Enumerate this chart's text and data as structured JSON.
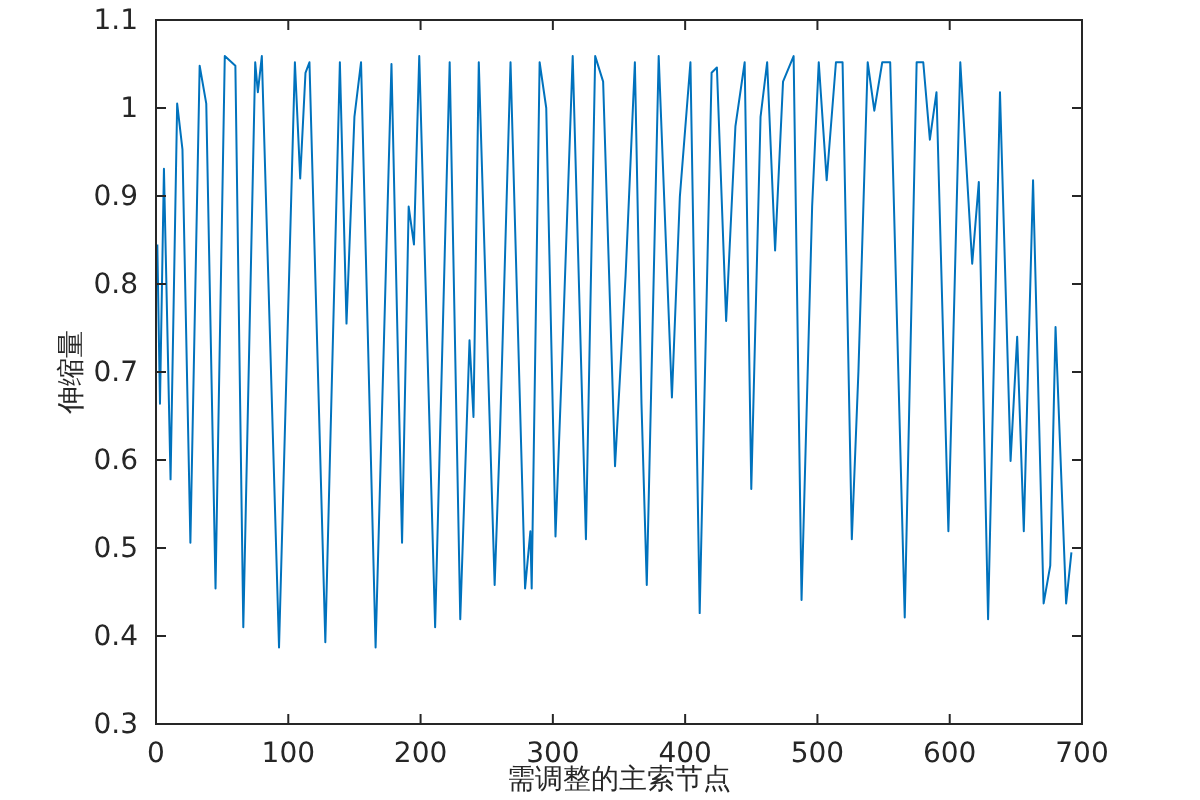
{
  "chart_data": {
    "type": "line",
    "xlabel": "需调整的主索节点",
    "ylabel": "伸缩量",
    "xlim": [
      0,
      700
    ],
    "ylim": [
      0.3,
      1.1
    ],
    "xticks": [
      0,
      100,
      200,
      300,
      400,
      500,
      600,
      700
    ],
    "yticks": [
      0.3,
      0.4,
      0.5,
      0.6,
      0.7,
      0.8,
      0.9,
      1,
      1.1
    ],
    "marker": "none",
    "line_style": "solid",
    "series": [
      {
        "color": "#0072bd",
        "x": [
          1,
          3,
          6,
          11,
          16,
          20,
          26,
          33,
          38,
          45,
          52,
          60,
          66,
          75,
          77,
          80,
          93,
          105,
          109,
          113,
          116,
          128,
          139,
          144,
          150,
          155,
          166,
          178,
          186,
          191,
          195,
          199,
          211,
          222,
          230,
          237,
          240,
          244,
          256,
          260,
          268,
          279,
          283,
          284,
          290,
          295,
          302,
          307,
          315,
          325,
          332,
          338,
          347,
          355,
          362,
          367,
          371,
          380,
          390,
          396,
          404,
          411,
          420,
          424,
          431,
          438,
          445,
          450,
          457,
          462,
          468,
          474,
          482,
          488,
          496,
          501,
          507,
          514,
          519,
          526,
          531,
          538,
          543,
          549,
          555,
          566,
          575,
          580,
          585,
          590,
          599,
          608,
          617,
          622,
          629,
          638,
          646,
          651,
          656,
          663,
          671,
          676,
          680,
          688,
          692
        ],
        "values": [
          0.845,
          0.664,
          0.931,
          0.578,
          1.005,
          0.953,
          0.506,
          1.048,
          1.005,
          0.454,
          1.059,
          1.048,
          0.41,
          1.052,
          1.018,
          1.059,
          0.387,
          1.052,
          0.92,
          1.04,
          1.052,
          0.393,
          1.052,
          0.755,
          0.99,
          1.052,
          0.387,
          1.05,
          0.506,
          0.888,
          0.845,
          1.059,
          0.41,
          1.052,
          0.419,
          0.736,
          0.649,
          1.052,
          0.458,
          0.628,
          1.052,
          0.454,
          0.519,
          0.454,
          1.052,
          1.0,
          0.513,
          0.714,
          1.059,
          0.51,
          1.059,
          1.03,
          0.593,
          0.81,
          1.052,
          0.664,
          0.458,
          1.059,
          0.671,
          0.899,
          1.052,
          0.426,
          1.04,
          1.046,
          0.758,
          0.979,
          1.052,
          0.567,
          0.99,
          1.052,
          0.838,
          1.03,
          1.059,
          0.441,
          0.888,
          1.052,
          0.918,
          1.052,
          1.052,
          0.51,
          0.701,
          1.052,
          0.997,
          1.052,
          1.052,
          0.421,
          1.052,
          1.052,
          0.964,
          1.018,
          0.519,
          1.052,
          0.823,
          0.916,
          0.419,
          1.018,
          0.599,
          0.74,
          0.519,
          0.918,
          0.437,
          0.48,
          0.751,
          0.437,
          0.495
        ]
      }
    ]
  }
}
